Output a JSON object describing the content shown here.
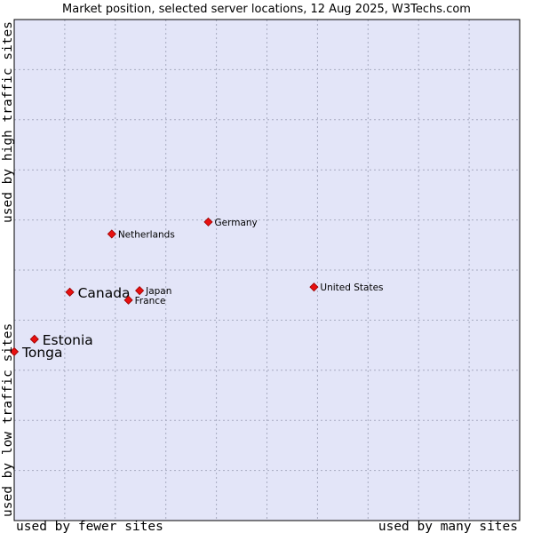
{
  "chart_data": {
    "type": "scatter",
    "title": "Market position, selected server locations, 12 Aug 2025, W3Techs.com",
    "xlabel_low": "used by fewer sites",
    "xlabel_high": "used by many sites",
    "ylabel_low": "used by low traffic sites",
    "ylabel_high": "used by high traffic sites",
    "xlim": [
      0,
      10
    ],
    "ylim": [
      0,
      10
    ],
    "grid": true,
    "colors": {
      "plot_bg": "#e3e5f8",
      "grid": "#a7aac0",
      "marker": "#e81010",
      "marker_stroke": "#990000"
    },
    "points": [
      {
        "name": "Germany",
        "x": 3.84,
        "y": 5.96,
        "emphasis": false
      },
      {
        "name": "Netherlands",
        "x": 1.93,
        "y": 5.72,
        "emphasis": false
      },
      {
        "name": "United States",
        "x": 5.93,
        "y": 4.66,
        "emphasis": false
      },
      {
        "name": "Canada",
        "x": 1.1,
        "y": 4.56,
        "emphasis": true
      },
      {
        "name": "Japan",
        "x": 2.48,
        "y": 4.59,
        "emphasis": false
      },
      {
        "name": "France",
        "x": 2.26,
        "y": 4.4,
        "emphasis": false
      },
      {
        "name": "Estonia",
        "x": 0.4,
        "y": 3.62,
        "emphasis": true
      },
      {
        "name": "Tonga",
        "x": 0.0,
        "y": 3.37,
        "emphasis": true
      }
    ]
  }
}
